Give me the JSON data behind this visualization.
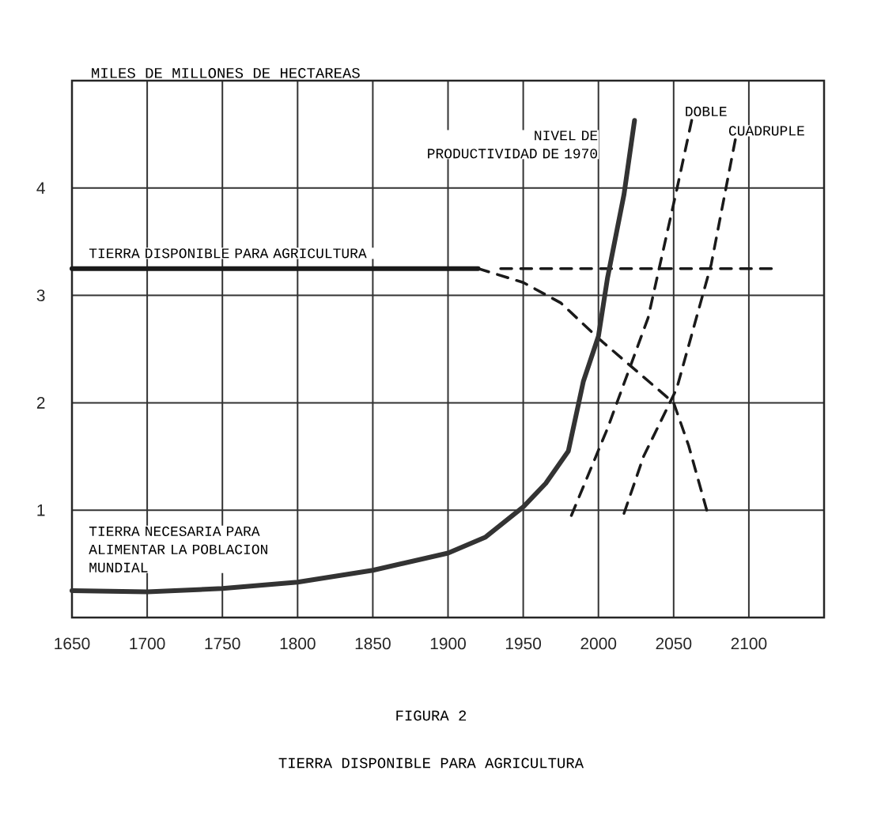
{
  "chart_data": {
    "type": "line",
    "title": "FIGURA 2",
    "subtitle": "TIERRA DISPONIBLE PARA AGRICULTURA",
    "ylabel": "MILES DE MILLONES DE HECTAREAS",
    "xlim": [
      1650,
      2150
    ],
    "xticks": [
      1650,
      1700,
      1750,
      1800,
      1850,
      1900,
      1950,
      2000,
      2050,
      2100,
      {
        "value": 2150,
        "label": null
      }
    ],
    "ylim": [
      0,
      5
    ],
    "yticks": [
      {
        "value": 0,
        "label": null
      },
      1,
      2,
      3,
      4,
      {
        "value": 5,
        "label": null
      }
    ],
    "grid": true,
    "annotations": [
      {
        "text": "NIVEL DE PRODUCTIVIDAD DE 1970",
        "x": 2024,
        "y": 4.63
      }
    ],
    "series": [
      {
        "name": "TIERRA DISPONIBLE PARA AGRICULTURA",
        "color": "#1a1a1a",
        "line_style": "solid",
        "x": [
          1650,
          1700,
          1750,
          1800,
          1850,
          1900,
          1920
        ],
        "values": [
          3.25,
          3.25,
          3.25,
          3.25,
          3.25,
          3.25,
          3.25
        ]
      },
      {
        "color": "#1a1a1a",
        "line_style": "dashed",
        "x": [
          1920,
          1950,
          1975,
          2000,
          2025,
          2050,
          2060,
          2072
        ],
        "values": [
          3.25,
          3.12,
          2.93,
          2.6,
          2.3,
          2.0,
          1.6,
          1.0
        ]
      },
      {
        "color": "#1a1a1a",
        "line_style": "dashed",
        "x": [
          1935,
          2115
        ],
        "values": [
          3.25,
          3.25
        ]
      },
      {
        "name": "TIERRA NECESARIA PARA ALIMENTAR LA POBLACION MUNDIAL",
        "color": "#333333",
        "line_style": "solid",
        "x": [
          1650,
          1700,
          1750,
          1800,
          1850,
          1900,
          1925,
          1950,
          1965,
          1980,
          1990,
          2000,
          2006,
          2017,
          2024
        ],
        "values": [
          0.25,
          0.24,
          0.27,
          0.33,
          0.44,
          0.6,
          0.75,
          1.03,
          1.25,
          1.55,
          2.2,
          2.62,
          3.16,
          3.94,
          4.63
        ]
      },
      {
        "name": "DOBLE",
        "color": "#1a1a1a",
        "line_style": "dashed",
        "x": [
          1982,
          2006,
          2033,
          2052,
          2062
        ],
        "values": [
          0.95,
          1.76,
          2.79,
          3.98,
          4.63
        ]
      },
      {
        "name": "CUADRUPLE",
        "color": "#1a1a1a",
        "line_style": "dashed",
        "x": [
          2017,
          2030,
          2052,
          2075,
          2091
        ],
        "values": [
          0.97,
          1.5,
          2.13,
          3.29,
          4.45
        ]
      }
    ]
  }
}
